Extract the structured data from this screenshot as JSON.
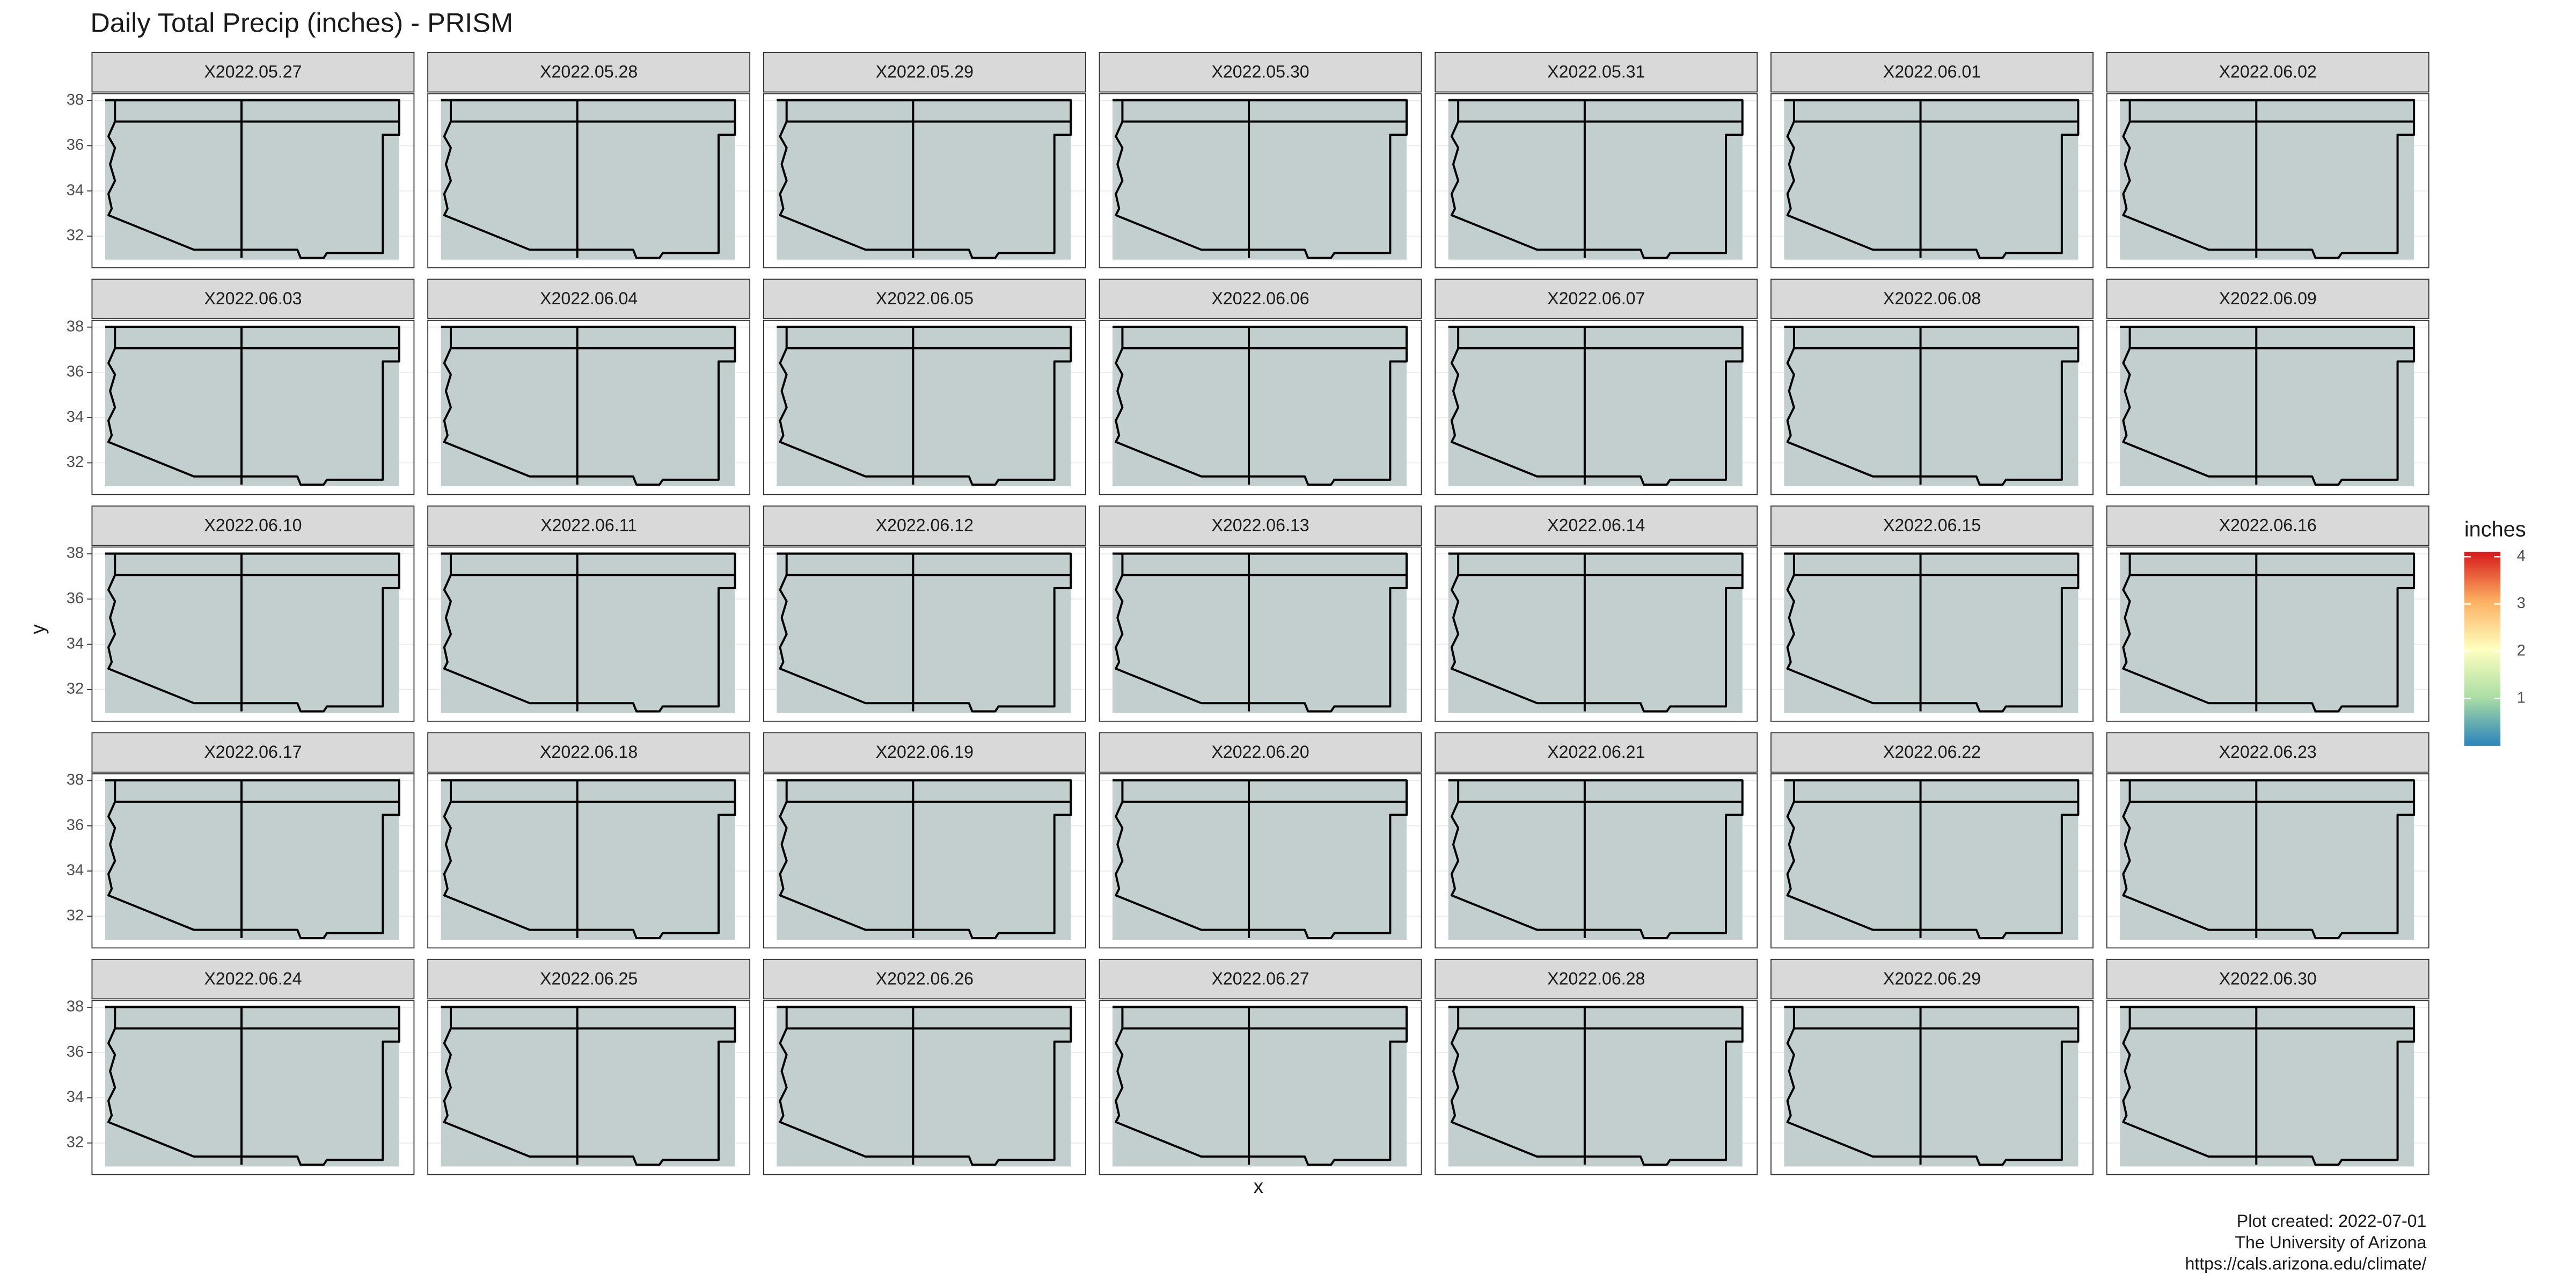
{
  "chart_data": {
    "type": "facet-map",
    "title": "Daily Total Precip (inches) - PRISM",
    "x_label": "x",
    "y_label": "y",
    "panels": [
      "X2022.05.27",
      "X2022.05.28",
      "X2022.05.29",
      "X2022.05.30",
      "X2022.05.31",
      "X2022.06.01",
      "X2022.06.02",
      "X2022.06.03",
      "X2022.06.04",
      "X2022.06.05",
      "X2022.06.06",
      "X2022.06.07",
      "X2022.06.08",
      "X2022.06.09",
      "X2022.06.10",
      "X2022.06.11",
      "X2022.06.12",
      "X2022.06.13",
      "X2022.06.14",
      "X2022.06.15",
      "X2022.06.16",
      "X2022.06.17",
      "X2022.06.18",
      "X2022.06.19",
      "X2022.06.20",
      "X2022.06.21",
      "X2022.06.22",
      "X2022.06.23",
      "X2022.06.24",
      "X2022.06.25",
      "X2022.06.26",
      "X2022.06.27",
      "X2022.06.28",
      "X2022.06.29",
      "X2022.06.30"
    ],
    "columns": 7,
    "ylim": [
      30.6,
      38.3
    ],
    "yticks": [
      32,
      34,
      36,
      38
    ],
    "grid": true,
    "legend": {
      "title": "inches",
      "lim": [
        0,
        4.1
      ],
      "ticks": [
        1,
        2,
        3,
        4
      ],
      "colors": [
        "#2b83ba",
        "#abdda4",
        "#ffffbf",
        "#fdae61",
        "#d7191c"
      ]
    },
    "caption": [
      "Plot created: 2022-07-01",
      "The University of Arizona",
      "https://cals.arizona.edu/climate/"
    ]
  }
}
